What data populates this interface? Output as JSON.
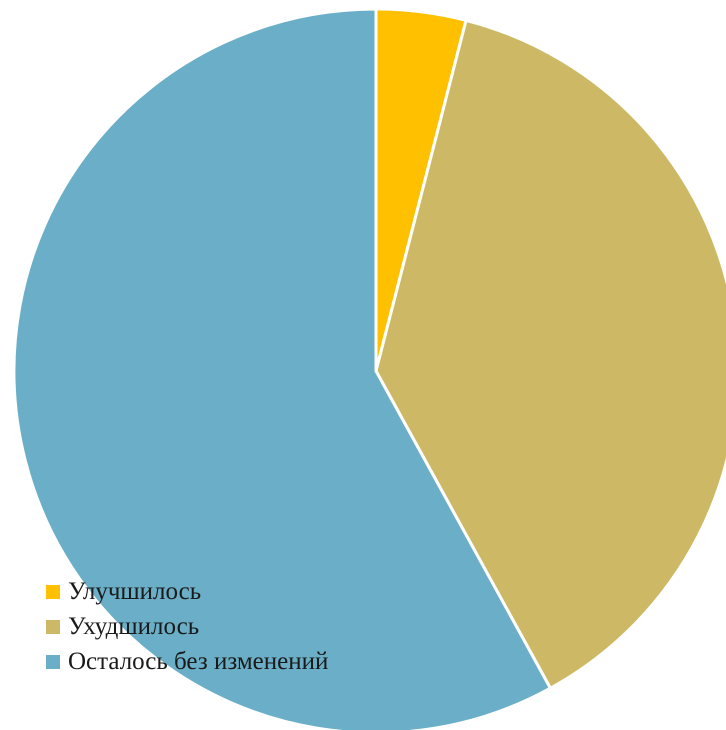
{
  "chart_data": {
    "type": "pie",
    "title": "",
    "start_angle_deg": 0,
    "direction": "clockwise",
    "slice_border_color": "#ffffff",
    "slices": [
      {
        "label": "Улучшилось",
        "value": 4,
        "color": "#FFC000"
      },
      {
        "label": "Ухудшилось",
        "value": 38,
        "color": "#CDB965"
      },
      {
        "label": "Осталось без изменений",
        "value": 58,
        "color": "#6AAFC7"
      }
    ],
    "legend": {
      "placement": "bottom-left",
      "items": [
        "Улучшилось",
        "Ухудшилось",
        "Осталось без изменений"
      ]
    }
  }
}
